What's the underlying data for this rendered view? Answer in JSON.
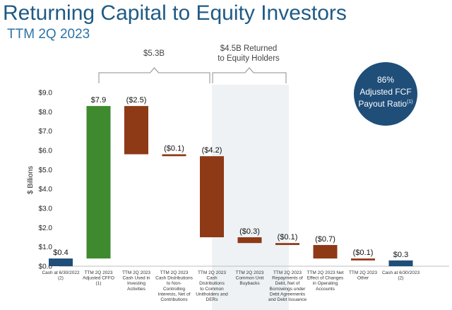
{
  "header": {
    "title": "Returning Capital to Equity Investors",
    "subtitle": "TTM 2Q 2023"
  },
  "annotations": {
    "brace_left": "$5.3B",
    "brace_right_line1": "$4.5B Returned",
    "brace_right_line2": "to Equity Holders",
    "badge_line1": "86%",
    "badge_line2": "Adjusted FCF",
    "badge_line3": "Payout Ratio",
    "badge_footnote": "(1)"
  },
  "colors": {
    "navy": "#1f4e79",
    "green": "#3f8a2e",
    "rust": "#8e3a16",
    "badge": "#1f4e79",
    "shade": "#eef2f4"
  },
  "chart_data": {
    "type": "bar",
    "subtype": "waterfall",
    "ylabel": "$ Billions",
    "ylim": [
      0,
      9
    ],
    "yticks": [
      "$0.0",
      "$1.0",
      "$2.0",
      "$3.0",
      "$4.0",
      "$5.0",
      "$6.0",
      "$7.0",
      "$8.0",
      "$9.0"
    ],
    "categories": [
      "Cash at 6/30/2022 (2)",
      "TTM 2Q 2023 Adjusted CFFO (1)",
      "TTM 2Q 2023 Cash Used in Investing Activities",
      "TTM 2Q 2023 Cash Distributions to Non-Controlling Interests, Net of Contributions",
      "TTM 2Q 2023 Cash Distributions to Common Unitholders and DERs",
      "TTM 2Q 2023 Common Unit Buybacks",
      "TTM 2Q 2023 Repayments of Debt, Net of Borrowings under Debt Agreements and Debt Issuance",
      "TTM 2Q 2023 Net Effect of Changes in Operating Accounts",
      "TTM 2Q 2023 Other",
      "Cash at 6/30/2023 (2)"
    ],
    "category_lines": [
      [
        "Cash at 6/30/2022",
        "(2)"
      ],
      [
        "TTM 2Q 2023",
        "Adjusted CFFO",
        "(1)"
      ],
      [
        "TTM 2Q 2023",
        "Cash Used in",
        "Investing",
        "Activities"
      ],
      [
        "TTM 2Q 2023",
        "Cash Distributions",
        "to Non-",
        "Controlling",
        "Interests, Net of",
        "Contributions"
      ],
      [
        "TTM 2Q 2023",
        "Cash",
        "Distributions",
        "to Common",
        "Unitholders and",
        "DERs"
      ],
      [
        "TTM 2Q 2023",
        "Common Unit",
        "Buybacks"
      ],
      [
        "TTM 2Q 2023",
        "Repayments of",
        "Debt, Net of",
        "Borrowings under",
        "Debt Agreements",
        "and Debt Issuance"
      ],
      [
        "TTM 2Q 2023 Net",
        "Effect of Changes",
        "in Operating",
        "Accounts"
      ],
      [
        "TTM 2Q 2023",
        "Other"
      ],
      [
        "Cash at 6/30/2023",
        "(2)"
      ]
    ],
    "values": [
      0.4,
      7.9,
      -2.5,
      -0.1,
      -4.2,
      -0.3,
      -0.1,
      -0.7,
      -0.1,
      0.3
    ],
    "value_labels": [
      "$0.4",
      "$7.9",
      "($2.5)",
      "($0.1)",
      "($4.2)",
      "($0.3)",
      "($0.1)",
      "($0.7)",
      "($0.1)",
      "$0.3"
    ],
    "bar_ranges": [
      [
        0,
        0.4
      ],
      [
        0.4,
        8.3
      ],
      [
        5.8,
        8.3
      ],
      [
        5.7,
        5.8
      ],
      [
        1.5,
        5.7
      ],
      [
        1.2,
        1.5
      ],
      [
        1.1,
        1.2
      ],
      [
        0.4,
        1.1
      ],
      [
        0.3,
        0.4
      ],
      [
        0,
        0.3
      ]
    ],
    "bar_colors": [
      "navy",
      "green",
      "rust",
      "rust",
      "rust",
      "rust",
      "rust",
      "rust",
      "rust",
      "navy"
    ]
  }
}
